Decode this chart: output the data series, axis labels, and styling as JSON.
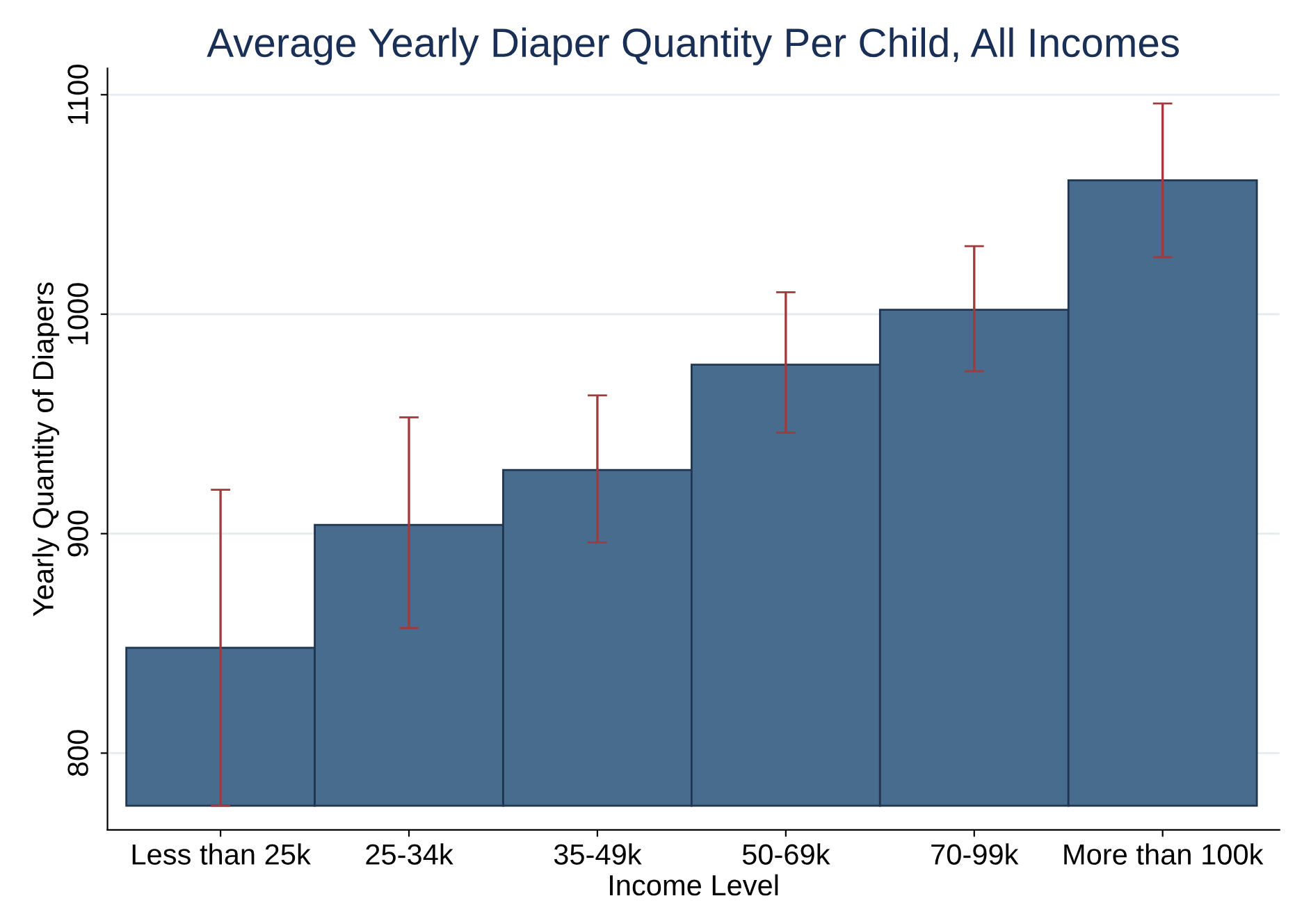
{
  "chart_data": {
    "type": "bar",
    "title": "Average Yearly Diaper Quantity Per Child, All Incomes",
    "xlabel": "Income Level",
    "ylabel": "Yearly Quantity of Diapers",
    "categories": [
      "Less than 25k",
      "25-34k",
      "35-49k",
      "50-69k",
      "70-99k",
      "More than 100k"
    ],
    "base": [
      776,
      776,
      776,
      776,
      776,
      776
    ],
    "values": [
      72,
      128,
      153,
      201,
      226,
      285
    ],
    "errors": [
      [
        776,
        920
      ],
      [
        857,
        953
      ],
      [
        896,
        963
      ],
      [
        946,
        1010
      ],
      [
        974,
        1031
      ],
      [
        1026,
        1096
      ]
    ],
    "color": "#486c8e",
    "ylim": [
      765,
      1112
    ],
    "yticks": [
      800,
      900,
      1000,
      1100
    ],
    "grid": "y",
    "legend": false
  }
}
